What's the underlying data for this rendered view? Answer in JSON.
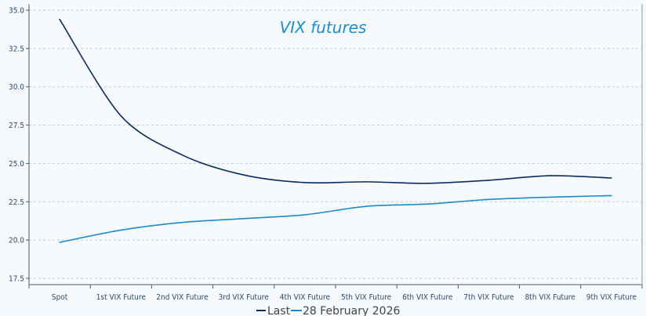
{
  "chart_data": {
    "type": "line",
    "title": "VIX futures",
    "xlabel": "",
    "ylabel": "",
    "categories": [
      "Spot",
      "1st VIX Future",
      "2nd VIX Future",
      "3rd VIX Future",
      "4th VIX Future",
      "5th VIX Future",
      "6th VIX Future",
      "7th VIX Future",
      "8th VIX Future",
      "9th VIX Future"
    ],
    "ylim": [
      17.5,
      35.0
    ],
    "yticks": [
      "17.5",
      "20.0",
      "22.5",
      "25.0",
      "27.5",
      "30.0",
      "32.5",
      "35.0"
    ],
    "grid": true,
    "legend_position": "bottom",
    "series": [
      {
        "name": "Last",
        "color": "#0d2b5e",
        "values": [
          34.4,
          28.1,
          25.55,
          24.25,
          23.75,
          23.8,
          23.7,
          23.9,
          24.2,
          24.05
        ]
      },
      {
        "name": "28 February 2026",
        "color": "#1a8ccc",
        "values": [
          19.85,
          20.65,
          21.15,
          21.4,
          21.65,
          22.2,
          22.35,
          22.65,
          22.8,
          22.9
        ]
      }
    ]
  }
}
